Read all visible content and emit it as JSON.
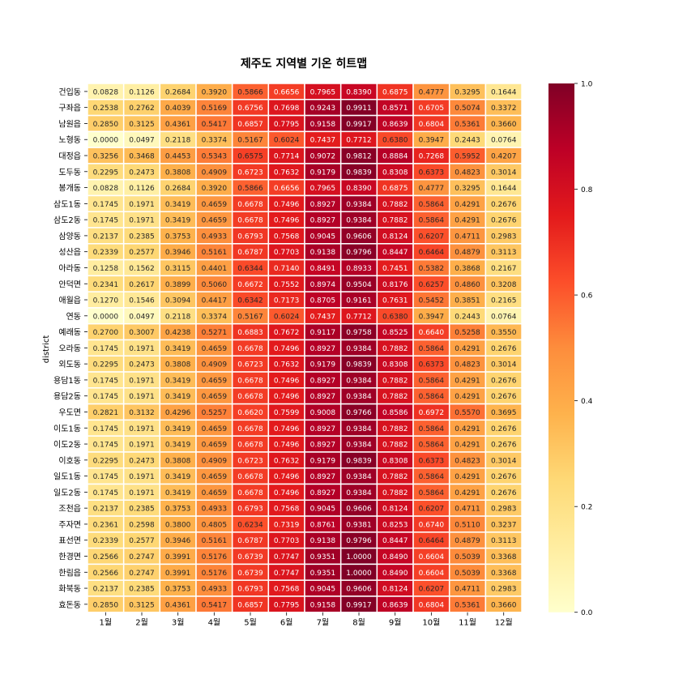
{
  "chart_data": {
    "type": "heatmap",
    "title": "제주도 지역별 기온 히트맵",
    "xlabel": "",
    "ylabel": "district",
    "colormap": "YlOrRd",
    "vmin": 0.0,
    "vmax": 1.0,
    "colorbar_ticks": [
      "0.0",
      "0.2",
      "0.4",
      "0.6",
      "0.8",
      "1.0"
    ],
    "columns": [
      "1월",
      "2월",
      "3월",
      "4월",
      "5월",
      "6월",
      "7월",
      "8월",
      "9월",
      "10월",
      "11월",
      "12월"
    ],
    "rows": [
      {
        "name": "건입동",
        "values": [
          "0.0828",
          "0.1126",
          "0.2684",
          "0.3920",
          "0.5866",
          "0.6656",
          "0.7965",
          "0.8390",
          "0.6875",
          "0.4777",
          "0.3295",
          "0.1644"
        ]
      },
      {
        "name": "구좌읍",
        "values": [
          "0.2538",
          "0.2762",
          "0.4039",
          "0.5169",
          "0.6756",
          "0.7698",
          "0.9243",
          "0.9911",
          "0.8571",
          "0.6705",
          "0.5074",
          "0.3372"
        ]
      },
      {
        "name": "남원읍",
        "values": [
          "0.2850",
          "0.3125",
          "0.4361",
          "0.5417",
          "0.6857",
          "0.7795",
          "0.9158",
          "0.9917",
          "0.8639",
          "0.6804",
          "0.5361",
          "0.3660"
        ]
      },
      {
        "name": "노형동",
        "values": [
          "0.0000",
          "0.0497",
          "0.2118",
          "0.3374",
          "0.5167",
          "0.6024",
          "0.7437",
          "0.7712",
          "0.6380",
          "0.3947",
          "0.2443",
          "0.0764"
        ]
      },
      {
        "name": "대정읍",
        "values": [
          "0.3256",
          "0.3468",
          "0.4453",
          "0.5343",
          "0.6575",
          "0.7714",
          "0.9072",
          "0.9812",
          "0.8884",
          "0.7268",
          "0.5952",
          "0.4207"
        ]
      },
      {
        "name": "도두동",
        "values": [
          "0.2295",
          "0.2473",
          "0.3808",
          "0.4909",
          "0.6723",
          "0.7632",
          "0.9179",
          "0.9839",
          "0.8308",
          "0.6373",
          "0.4823",
          "0.3014"
        ]
      },
      {
        "name": "봉개동",
        "values": [
          "0.0828",
          "0.1126",
          "0.2684",
          "0.3920",
          "0.5866",
          "0.6656",
          "0.7965",
          "0.8390",
          "0.6875",
          "0.4777",
          "0.3295",
          "0.1644"
        ]
      },
      {
        "name": "삼도1동",
        "values": [
          "0.1745",
          "0.1971",
          "0.3419",
          "0.4659",
          "0.6678",
          "0.7496",
          "0.8927",
          "0.9384",
          "0.7882",
          "0.5864",
          "0.4291",
          "0.2676"
        ]
      },
      {
        "name": "삼도2동",
        "values": [
          "0.1745",
          "0.1971",
          "0.3419",
          "0.4659",
          "0.6678",
          "0.7496",
          "0.8927",
          "0.9384",
          "0.7882",
          "0.5864",
          "0.4291",
          "0.2676"
        ]
      },
      {
        "name": "삼양동",
        "values": [
          "0.2137",
          "0.2385",
          "0.3753",
          "0.4933",
          "0.6793",
          "0.7568",
          "0.9045",
          "0.9606",
          "0.8124",
          "0.6207",
          "0.4711",
          "0.2983"
        ]
      },
      {
        "name": "성산읍",
        "values": [
          "0.2339",
          "0.2577",
          "0.3946",
          "0.5161",
          "0.6787",
          "0.7703",
          "0.9138",
          "0.9796",
          "0.8447",
          "0.6464",
          "0.4879",
          "0.3113"
        ]
      },
      {
        "name": "아라동",
        "values": [
          "0.1258",
          "0.1562",
          "0.3115",
          "0.4401",
          "0.6344",
          "0.7140",
          "0.8491",
          "0.8933",
          "0.7451",
          "0.5382",
          "0.3868",
          "0.2167"
        ]
      },
      {
        "name": "안덕면",
        "values": [
          "0.2341",
          "0.2617",
          "0.3899",
          "0.5060",
          "0.6672",
          "0.7552",
          "0.8974",
          "0.9504",
          "0.8176",
          "0.6257",
          "0.4860",
          "0.3208"
        ]
      },
      {
        "name": "애월읍",
        "values": [
          "0.1270",
          "0.1546",
          "0.3094",
          "0.4417",
          "0.6342",
          "0.7173",
          "0.8705",
          "0.9161",
          "0.7631",
          "0.5452",
          "0.3851",
          "0.2165"
        ]
      },
      {
        "name": "연동",
        "values": [
          "0.0000",
          "0.0497",
          "0.2118",
          "0.3374",
          "0.5167",
          "0.6024",
          "0.7437",
          "0.7712",
          "0.6380",
          "0.3947",
          "0.2443",
          "0.0764"
        ]
      },
      {
        "name": "예래동",
        "values": [
          "0.2700",
          "0.3007",
          "0.4238",
          "0.5271",
          "0.6883",
          "0.7672",
          "0.9117",
          "0.9758",
          "0.8525",
          "0.6640",
          "0.5258",
          "0.3550"
        ]
      },
      {
        "name": "오라동",
        "values": [
          "0.1745",
          "0.1971",
          "0.3419",
          "0.4659",
          "0.6678",
          "0.7496",
          "0.8927",
          "0.9384",
          "0.7882",
          "0.5864",
          "0.4291",
          "0.2676"
        ]
      },
      {
        "name": "외도동",
        "values": [
          "0.2295",
          "0.2473",
          "0.3808",
          "0.4909",
          "0.6723",
          "0.7632",
          "0.9179",
          "0.9839",
          "0.8308",
          "0.6373",
          "0.4823",
          "0.3014"
        ]
      },
      {
        "name": "용담1동",
        "values": [
          "0.1745",
          "0.1971",
          "0.3419",
          "0.4659",
          "0.6678",
          "0.7496",
          "0.8927",
          "0.9384",
          "0.7882",
          "0.5864",
          "0.4291",
          "0.2676"
        ]
      },
      {
        "name": "용담2동",
        "values": [
          "0.1745",
          "0.1971",
          "0.3419",
          "0.4659",
          "0.6678",
          "0.7496",
          "0.8927",
          "0.9384",
          "0.7882",
          "0.5864",
          "0.4291",
          "0.2676"
        ]
      },
      {
        "name": "우도면",
        "values": [
          "0.2821",
          "0.3132",
          "0.4296",
          "0.5257",
          "0.6620",
          "0.7599",
          "0.9008",
          "0.9766",
          "0.8586",
          "0.6972",
          "0.5570",
          "0.3695"
        ]
      },
      {
        "name": "이도1동",
        "values": [
          "0.1745",
          "0.1971",
          "0.3419",
          "0.4659",
          "0.6678",
          "0.7496",
          "0.8927",
          "0.9384",
          "0.7882",
          "0.5864",
          "0.4291",
          "0.2676"
        ]
      },
      {
        "name": "이도2동",
        "values": [
          "0.1745",
          "0.1971",
          "0.3419",
          "0.4659",
          "0.6678",
          "0.7496",
          "0.8927",
          "0.9384",
          "0.7882",
          "0.5864",
          "0.4291",
          "0.2676"
        ]
      },
      {
        "name": "이호동",
        "values": [
          "0.2295",
          "0.2473",
          "0.3808",
          "0.4909",
          "0.6723",
          "0.7632",
          "0.9179",
          "0.9839",
          "0.8308",
          "0.6373",
          "0.4823",
          "0.3014"
        ]
      },
      {
        "name": "일도1동",
        "values": [
          "0.1745",
          "0.1971",
          "0.3419",
          "0.4659",
          "0.6678",
          "0.7496",
          "0.8927",
          "0.9384",
          "0.7882",
          "0.5864",
          "0.4291",
          "0.2676"
        ]
      },
      {
        "name": "일도2동",
        "values": [
          "0.1745",
          "0.1971",
          "0.3419",
          "0.4659",
          "0.6678",
          "0.7496",
          "0.8927",
          "0.9384",
          "0.7882",
          "0.5864",
          "0.4291",
          "0.2676"
        ]
      },
      {
        "name": "조천읍",
        "values": [
          "0.2137",
          "0.2385",
          "0.3753",
          "0.4933",
          "0.6793",
          "0.7568",
          "0.9045",
          "0.9606",
          "0.8124",
          "0.6207",
          "0.4711",
          "0.2983"
        ]
      },
      {
        "name": "주자면",
        "values": [
          "0.2361",
          "0.2598",
          "0.3800",
          "0.4805",
          "0.6234",
          "0.7319",
          "0.8761",
          "0.9381",
          "0.8253",
          "0.6740",
          "0.5110",
          "0.3237"
        ]
      },
      {
        "name": "표선면",
        "values": [
          "0.2339",
          "0.2577",
          "0.3946",
          "0.5161",
          "0.6787",
          "0.7703",
          "0.9138",
          "0.9796",
          "0.8447",
          "0.6464",
          "0.4879",
          "0.3113"
        ]
      },
      {
        "name": "한경면",
        "values": [
          "0.2566",
          "0.2747",
          "0.3991",
          "0.5176",
          "0.6739",
          "0.7747",
          "0.9351",
          "1.0000",
          "0.8490",
          "0.6604",
          "0.5039",
          "0.3368"
        ]
      },
      {
        "name": "한림읍",
        "values": [
          "0.2566",
          "0.2747",
          "0.3991",
          "0.5176",
          "0.6739",
          "0.7747",
          "0.9351",
          "1.0000",
          "0.8490",
          "0.6604",
          "0.5039",
          "0.3368"
        ]
      },
      {
        "name": "화북동",
        "values": [
          "0.2137",
          "0.2385",
          "0.3753",
          "0.4933",
          "0.6793",
          "0.7568",
          "0.9045",
          "0.9606",
          "0.8124",
          "0.6207",
          "0.4711",
          "0.2983"
        ]
      },
      {
        "name": "효돈동",
        "values": [
          "0.2850",
          "0.3125",
          "0.4361",
          "0.5417",
          "0.6857",
          "0.7795",
          "0.9158",
          "0.9917",
          "0.8639",
          "0.6804",
          "0.5361",
          "0.3660"
        ]
      }
    ]
  }
}
